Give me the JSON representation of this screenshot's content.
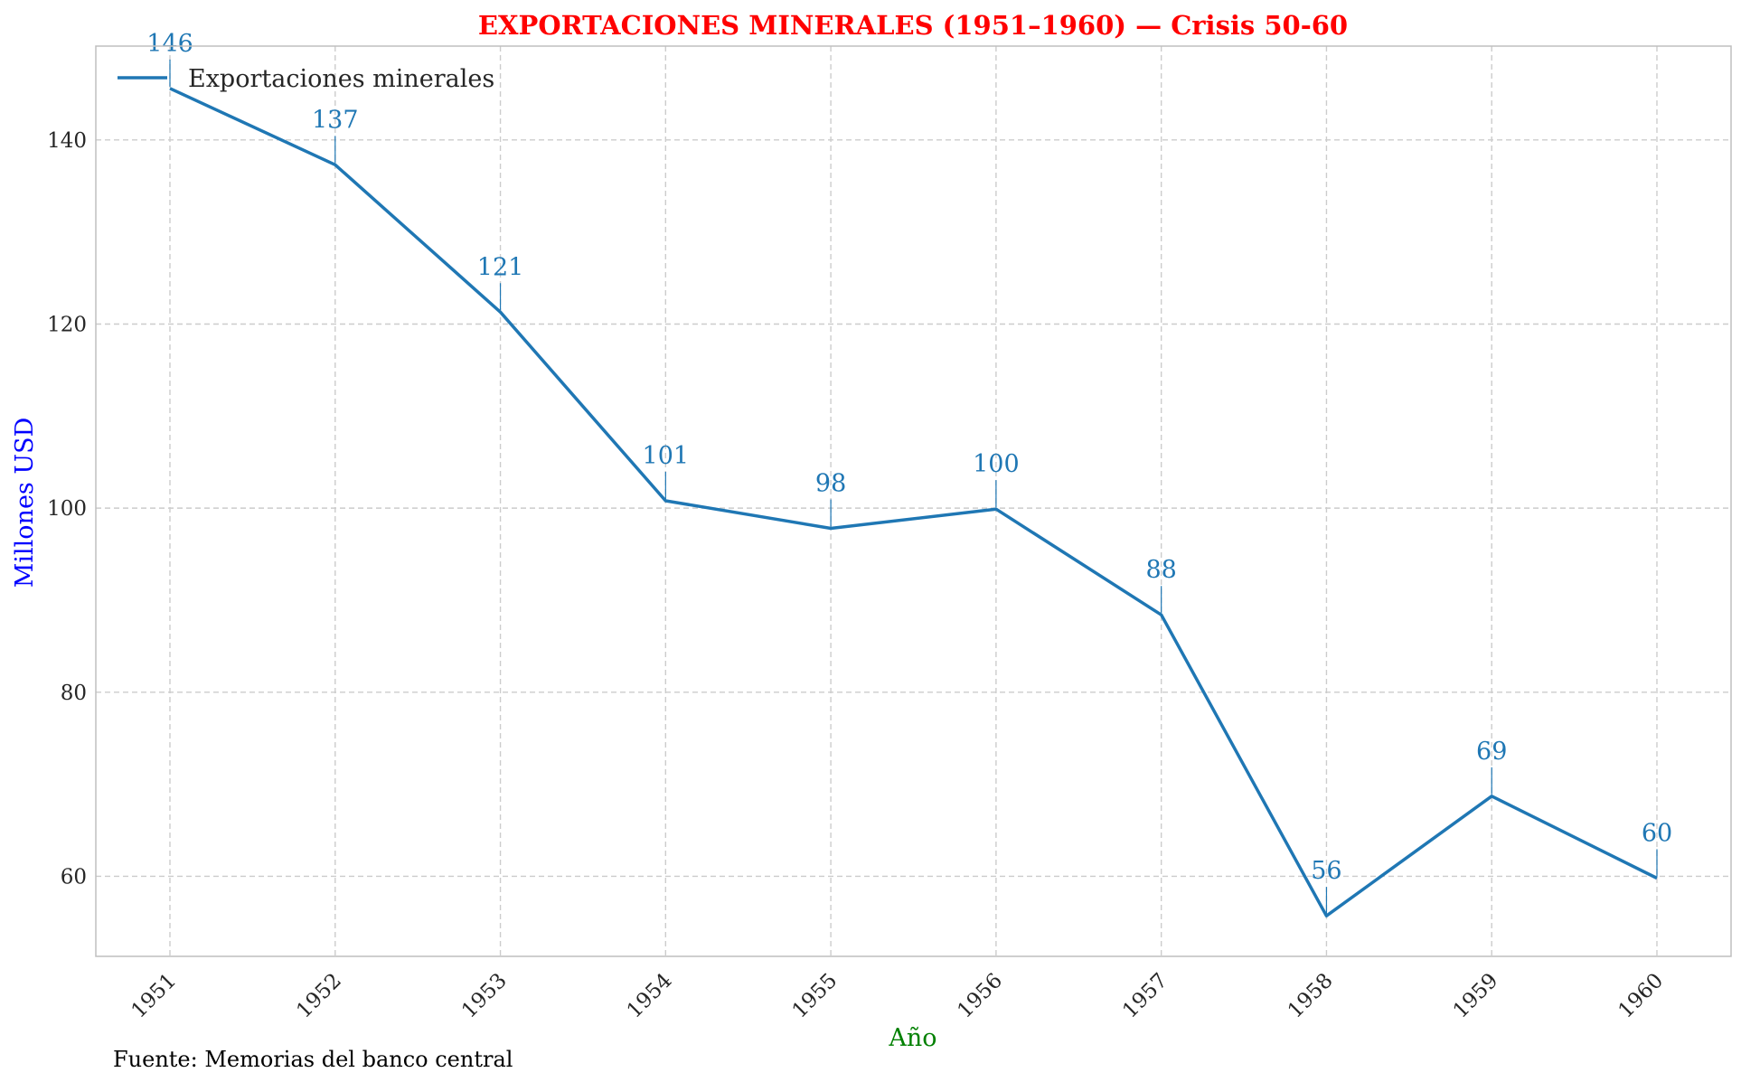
{
  "chart_data": {
    "type": "line",
    "title": "EXPORTACIONES MINERALES (1951–1960) — Crisis 50-60",
    "xlabel": "Año",
    "ylabel": "Millones USD",
    "source": "Fuente: Memorias del banco central",
    "x": [
      "1951",
      "1952",
      "1953",
      "1954",
      "1955",
      "1956",
      "1957",
      "1958",
      "1959",
      "1960"
    ],
    "series": [
      {
        "name": "Exportaciones minerales",
        "values": [
          145.6,
          137.3,
          121.3,
          100.8,
          97.8,
          99.9,
          88.4,
          55.7,
          68.7,
          59.8
        ],
        "labels": [
          "146",
          "137",
          "121",
          "101",
          "98",
          "100",
          "88",
          "56",
          "69",
          "60"
        ]
      }
    ],
    "ylim": [
      51.3,
      150.2
    ],
    "yticks": [
      60,
      80,
      100,
      120,
      140
    ],
    "grid": true,
    "legend_position": "top-left",
    "colors": {
      "series": "#1f77b4",
      "title": "#ff0000",
      "ylabel": "#0000ff",
      "xlabel": "#008000",
      "grid": "#cccccc",
      "frame": "#bfbfbf"
    }
  }
}
